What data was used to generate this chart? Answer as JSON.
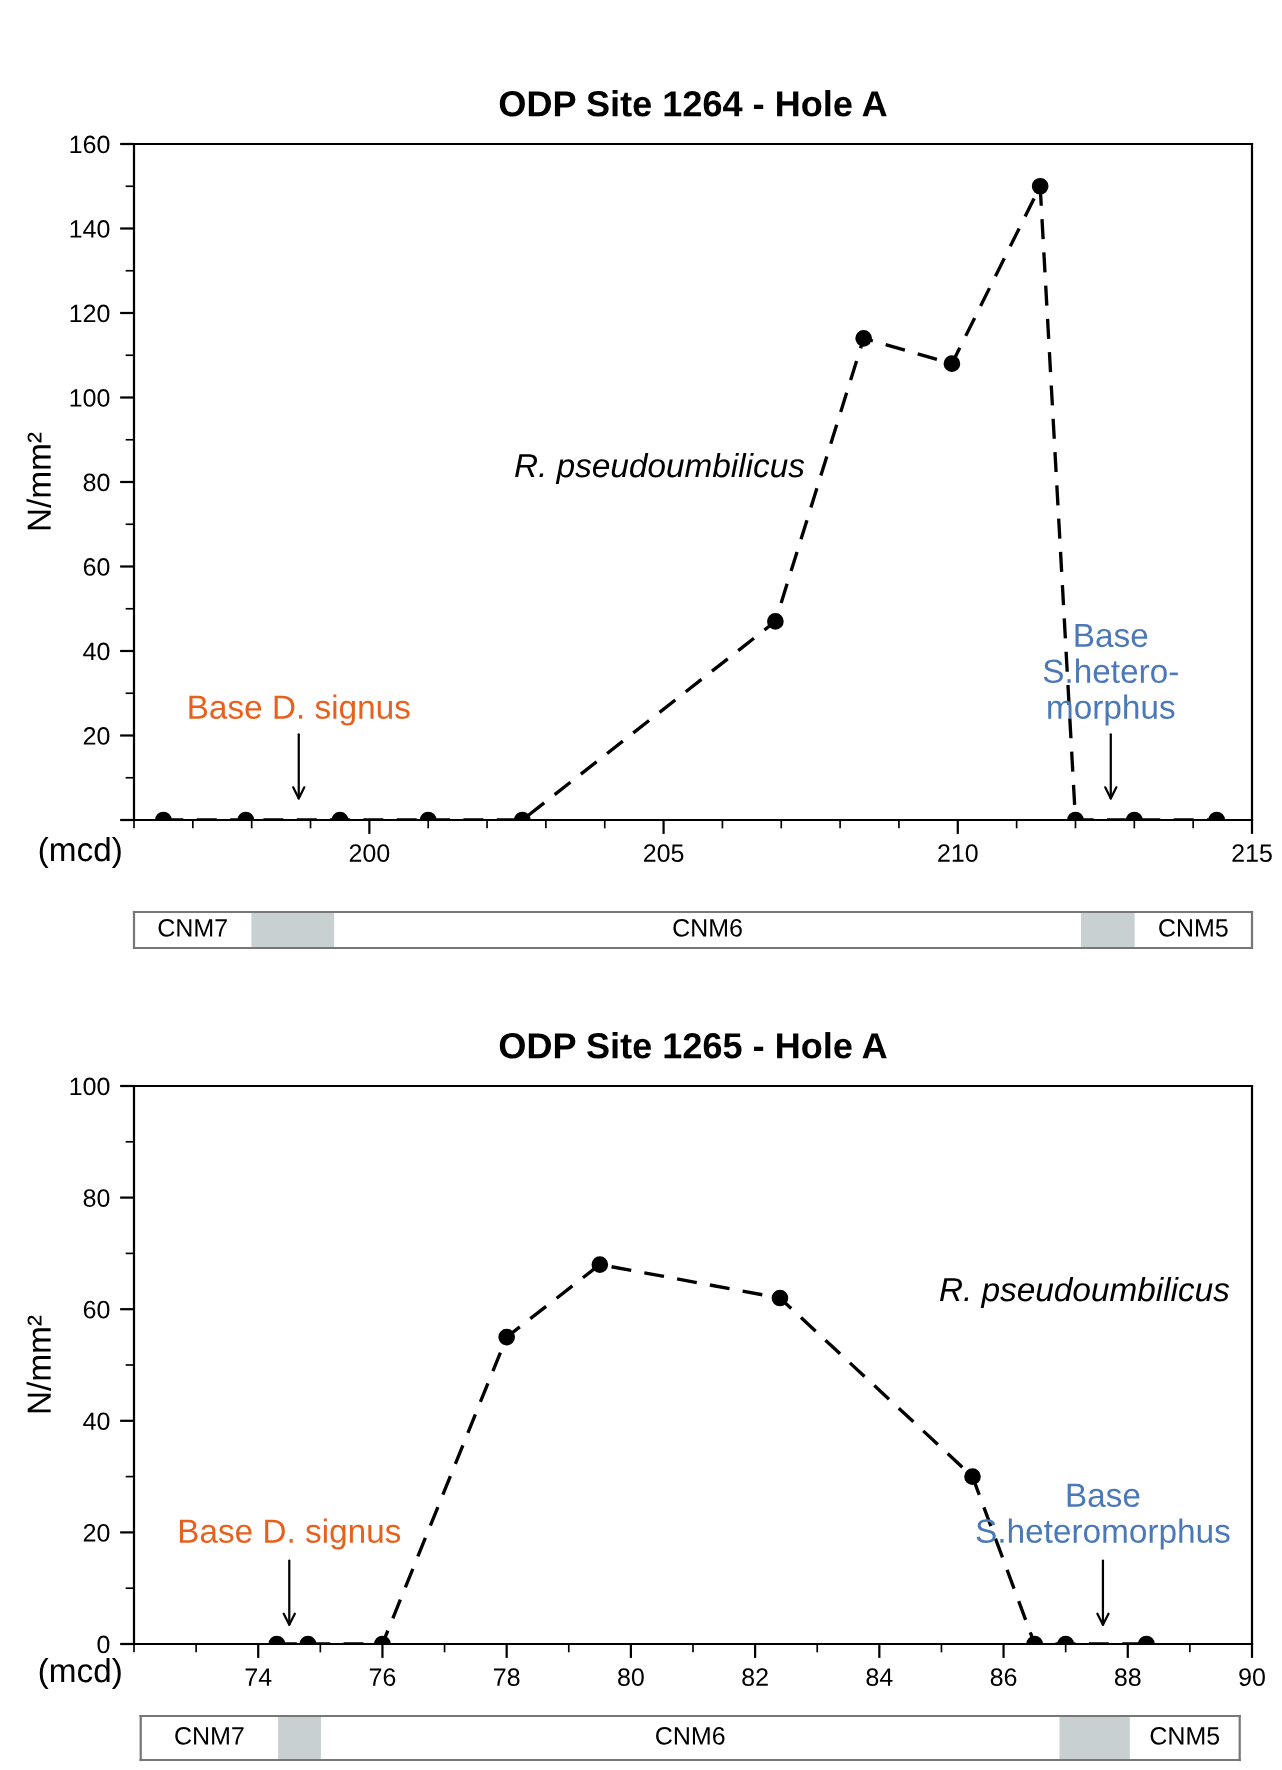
{
  "chart_data": [
    {
      "type": "line",
      "title": "ODP Site 1264 - Hole A",
      "xlabel": "(mcd)",
      "ylabel": "N/mm²",
      "xlim": [
        196,
        215
      ],
      "xticks": [
        200,
        205,
        210,
        215
      ],
      "ylim": [
        0,
        160
      ],
      "yticks": [
        {
          "value": 0,
          "label": null
        },
        20,
        40,
        60,
        80,
        100,
        120,
        140,
        160
      ],
      "marker": "circle",
      "line_style": "dashed",
      "series": [
        {
          "name": "R. pseudoumbilicus",
          "color": "#000000",
          "x": [
            196.5,
            197.9,
            199.5,
            201.0,
            202.6,
            206.9,
            208.4,
            209.9,
            211.4,
            212.0,
            213.0,
            214.4
          ],
          "values": [
            0,
            0,
            0,
            0,
            0,
            47,
            114,
            108,
            150,
            0,
            0,
            0
          ]
        }
      ],
      "annotations": [
        {
          "text": "Base D. signus",
          "x": 198.8,
          "y": 0
        },
        {
          "text": "Base\nS.hetero-\nmorphus",
          "x": 212.6,
          "y": 0
        },
        "CNM7",
        "CNM6",
        "CNM5"
      ]
    },
    {
      "type": "line",
      "title": "ODP Site 1265 - Hole A",
      "xlabel": "(mcd)",
      "ylabel": "N/mm²",
      "xlim": [
        72,
        90
      ],
      "xticks": [
        74,
        76,
        78,
        80,
        82,
        84,
        86,
        88,
        90
      ],
      "ylim": [
        0,
        100
      ],
      "yticks": [
        0,
        20,
        40,
        60,
        80,
        100
      ],
      "marker": "circle",
      "line_style": "dashed",
      "series": [
        {
          "name": "R. pseudoumbilicus",
          "color": "#000000",
          "x": [
            74.3,
            74.8,
            76.0,
            78.0,
            79.5,
            82.4,
            85.5,
            86.5,
            87.0,
            88.3
          ],
          "values": [
            0,
            0,
            0,
            55,
            68,
            62,
            30,
            0,
            0,
            0
          ]
        }
      ],
      "annotations": [
        {
          "text": "Base D. signus",
          "x": 74.5,
          "y": 0
        },
        {
          "text": "Base\nS.heteromorphus",
          "x": 87.6,
          "y": 0
        },
        "CNM7",
        "CNM6",
        "CNM5"
      ]
    }
  ]
}
